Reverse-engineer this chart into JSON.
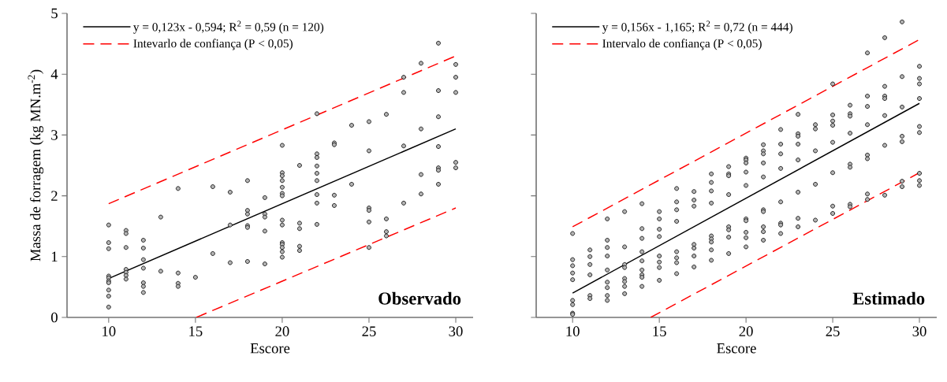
{
  "chart_data": [
    {
      "type": "scatter",
      "xlabel": "Escore",
      "ylabel": "Massa de forragem (kg MN.m$^{-2}$)",
      "xlim": [
        7.6,
        31
      ],
      "ylim": [
        0,
        5
      ],
      "xticks": [
        10,
        15,
        20,
        25,
        30
      ],
      "yticks": [
        0,
        1,
        2,
        3,
        4,
        5
      ],
      "legend": "top left",
      "annotations": [
        "Observado"
      ],
      "series": [
        {
          "type": "scatter",
          "marker": "circle",
          "color": "#b4b4b4",
          "x": [
            10,
            10,
            10,
            10,
            10,
            10,
            10,
            10,
            10,
            10,
            11,
            11,
            11,
            11,
            11,
            11,
            11,
            12,
            12,
            12,
            12,
            12,
            12,
            12,
            13,
            13,
            14,
            14,
            14,
            14,
            15,
            16,
            16,
            17,
            17,
            17,
            18,
            18,
            18,
            18,
            18,
            18,
            19,
            19,
            19,
            19,
            19,
            20,
            20,
            20,
            20,
            20,
            20,
            20,
            20,
            20,
            20,
            20,
            20,
            20,
            20,
            21,
            21,
            21,
            21,
            21,
            22,
            22,
            22,
            22,
            22,
            22,
            22,
            22,
            22,
            23,
            23,
            23,
            23,
            24,
            24,
            25,
            25,
            25,
            25,
            25,
            25,
            26,
            26,
            26,
            26,
            27,
            27,
            27,
            27,
            28,
            28,
            28,
            28,
            29,
            29,
            29,
            29,
            29,
            29,
            29,
            30,
            30,
            30,
            30,
            30
          ],
          "values": [
            1.52,
            1.23,
            1.13,
            0.68,
            0.65,
            0.6,
            0.57,
            0.45,
            0.35,
            0.17,
            1.43,
            1.38,
            1.15,
            0.79,
            0.74,
            0.69,
            0.63,
            1.27,
            1.14,
            0.95,
            0.81,
            0.57,
            0.51,
            0.41,
            1.65,
            0.76,
            2.12,
            0.73,
            0.56,
            0.51,
            0.66,
            2.15,
            1.05,
            2.06,
            1.52,
            0.9,
            2.25,
            1.76,
            1.7,
            1.51,
            1.48,
            0.92,
            1.97,
            1.7,
            1.65,
            1.42,
            0.88,
            2.83,
            2.38,
            2.33,
            2.25,
            2.14,
            2.04,
            2.0,
            1.6,
            1.52,
            1.23,
            1.2,
            1.15,
            1.08,
            0.99,
            2.5,
            1.55,
            1.46,
            1.17,
            1.1,
            3.35,
            2.69,
            2.63,
            2.49,
            2.37,
            2.25,
            2.02,
            1.88,
            1.53,
            2.87,
            2.84,
            2.01,
            1.84,
            3.16,
            2.19,
            3.22,
            2.74,
            1.8,
            1.76,
            1.57,
            1.15,
            3.34,
            1.62,
            1.41,
            1.34,
            3.95,
            3.7,
            2.82,
            1.88,
            4.18,
            3.1,
            2.35,
            2.03,
            4.51,
            3.73,
            3.3,
            2.81,
            2.46,
            2.42,
            2.19,
            4.16,
            3.95,
            3.7,
            2.55,
            2.46
          ]
        },
        {
          "type": "line",
          "name": "y = 0,123x - 0,594;  R$^{2}$ = 0,59 (n = 120)",
          "color": "#000000",
          "line_style": "solid",
          "x": [
            10,
            30
          ],
          "values": [
            0.64,
            3.1
          ]
        },
        {
          "type": "line",
          "name": "Intevarlo de confiança (P < 0,05)",
          "color": "#ff0000",
          "line_style": "dashed",
          "x": [
            10,
            30
          ],
          "values": [
            1.87,
            4.3
          ]
        },
        {
          "type": "line",
          "color": "#ff0000",
          "line_style": "dashed",
          "x": [
            15.05,
            30
          ],
          "values": [
            0,
            1.8
          ]
        }
      ]
    },
    {
      "type": "scatter",
      "xlabel": "Escore",
      "xlim": [
        7.9,
        31
      ],
      "ylim": [
        0,
        5
      ],
      "xticks": [
        10,
        15,
        20,
        25,
        30
      ],
      "yticks": [
        0,
        1,
        2,
        3,
        4,
        5
      ],
      "tick_labels": "x",
      "legend": "top left",
      "annotations": [
        "Estimado"
      ],
      "series": [
        {
          "type": "scatter",
          "marker": "circle",
          "color": "#b4b4b4",
          "x": [
            10,
            10,
            10,
            10,
            10,
            10,
            10,
            10,
            10,
            11,
            11,
            11,
            11,
            11,
            11,
            12,
            12,
            12,
            12,
            12,
            12,
            12,
            12,
            12,
            13,
            13,
            13,
            13,
            13,
            13,
            13,
            13,
            14,
            14,
            14,
            14,
            14,
            14,
            14,
            14,
            14,
            15,
            15,
            15,
            15,
            15,
            15,
            15,
            15,
            16,
            16,
            16,
            16,
            16,
            16,
            16,
            16,
            17,
            17,
            17,
            17,
            17,
            17,
            17,
            18,
            18,
            18,
            18,
            18,
            18,
            18,
            18,
            18,
            19,
            19,
            19,
            19,
            19,
            19,
            19,
            19,
            20,
            20,
            20,
            20,
            20,
            20,
            20,
            20,
            20,
            20,
            21,
            21,
            21,
            21,
            21,
            21,
            21,
            21,
            21,
            21,
            22,
            22,
            22,
            22,
            22,
            22,
            22,
            22,
            23,
            23,
            23,
            23,
            23,
            23,
            23,
            23,
            24,
            24,
            24,
            24,
            24,
            25,
            25,
            25,
            25,
            25,
            25,
            25,
            25,
            26,
            26,
            26,
            26,
            26,
            26,
            26,
            26,
            27,
            27,
            27,
            27,
            27,
            27,
            27,
            27,
            28,
            28,
            28,
            28,
            28,
            28,
            28,
            29,
            29,
            29,
            29,
            29,
            29,
            29,
            30,
            30,
            30,
            30,
            30,
            30,
            30,
            30,
            30
          ],
          "values": [
            1.38,
            0.95,
            0.85,
            0.73,
            0.62,
            0.28,
            0.21,
            0.07,
            0.05,
            1.11,
            1.0,
            0.87,
            0.7,
            0.36,
            0.31,
            1.62,
            1.27,
            1.15,
            1.01,
            0.78,
            0.58,
            0.49,
            0.36,
            0.28,
            1.74,
            1.16,
            0.87,
            0.82,
            0.64,
            0.59,
            0.51,
            0.39,
            1.87,
            1.46,
            1.3,
            1.08,
            0.93,
            0.78,
            0.7,
            0.66,
            0.51,
            1.74,
            1.62,
            1.45,
            1.33,
            1.01,
            0.91,
            0.82,
            0.61,
            2.12,
            1.9,
            1.77,
            1.58,
            1.08,
            0.98,
            0.9,
            0.72,
            2.07,
            1.93,
            1.83,
            1.2,
            1.14,
            1.01,
            0.83,
            2.36,
            2.22,
            2.08,
            1.88,
            1.34,
            1.29,
            1.24,
            1.11,
            0.94,
            2.48,
            2.36,
            2.33,
            2.02,
            1.49,
            1.44,
            1.32,
            1.05,
            2.62,
            2.59,
            2.54,
            2.39,
            2.17,
            1.62,
            1.59,
            1.4,
            1.31,
            1.16,
            2.84,
            2.74,
            2.69,
            2.54,
            2.31,
            1.77,
            1.74,
            1.49,
            1.41,
            1.27,
            3.09,
            2.85,
            2.69,
            2.45,
            1.9,
            1.55,
            1.52,
            1.38,
            3.34,
            3.02,
            2.98,
            2.85,
            2.59,
            2.06,
            1.63,
            1.49,
            3.17,
            3.1,
            2.74,
            2.19,
            1.6,
            3.84,
            3.33,
            3.23,
            3.16,
            2.88,
            2.38,
            1.83,
            1.71,
            3.49,
            3.35,
            3.31,
            3.03,
            2.52,
            2.47,
            1.86,
            1.82,
            4.35,
            3.64,
            3.47,
            3.17,
            2.67,
            2.61,
            2.03,
            1.94,
            4.6,
            3.8,
            3.64,
            3.6,
            3.32,
            2.83,
            2.01,
            4.86,
            3.96,
            3.46,
            2.98,
            2.89,
            2.24,
            2.15,
            4.13,
            3.93,
            3.84,
            3.6,
            3.14,
            3.04,
            2.37,
            2.25,
            2.17
          ]
        },
        {
          "type": "line",
          "name": "y = 0,156x - 1,165;  R$^{2}$ = 0,72  (n = 444)",
          "color": "#000000",
          "line_style": "solid",
          "x": [
            10,
            30
          ],
          "values": [
            0.4,
            3.52
          ]
        },
        {
          "type": "line",
          "name": "Intervalo de confiança (P < 0,05)",
          "color": "#ff0000",
          "line_style": "dashed",
          "x": [
            10,
            30
          ],
          "values": [
            1.49,
            4.57
          ]
        },
        {
          "type": "line",
          "color": "#ff0000",
          "line_style": "dashed",
          "x": [
            14.5,
            30
          ],
          "values": [
            0,
            2.38
          ]
        }
      ]
    }
  ]
}
